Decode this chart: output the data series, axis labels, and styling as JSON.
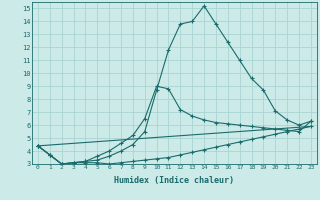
{
  "bg_color": "#cceae8",
  "grid_color": "#aad4d2",
  "line_color": "#1a6b6b",
  "xlabel": "Humidex (Indice chaleur)",
  "xlim": [
    -0.5,
    23.5
  ],
  "ylim": [
    3,
    15.5
  ],
  "yticks": [
    3,
    4,
    5,
    6,
    7,
    8,
    9,
    10,
    11,
    12,
    13,
    14,
    15
  ],
  "xticks": [
    0,
    1,
    2,
    3,
    4,
    5,
    6,
    7,
    8,
    9,
    10,
    11,
    12,
    13,
    14,
    15,
    16,
    17,
    18,
    19,
    20,
    21,
    22,
    23
  ],
  "line1_x": [
    0,
    1,
    2,
    3,
    4,
    5,
    6,
    7,
    8,
    9,
    10,
    11,
    12,
    13,
    14,
    15,
    16,
    17,
    18,
    19,
    20,
    21,
    22,
    23
  ],
  "line1_y": [
    4.4,
    3.7,
    3.0,
    3.1,
    3.1,
    3.1,
    3.0,
    3.1,
    3.2,
    3.3,
    3.4,
    3.5,
    3.7,
    3.9,
    4.1,
    4.3,
    4.5,
    4.7,
    4.9,
    5.1,
    5.3,
    5.5,
    5.7,
    5.9
  ],
  "line2_x": [
    0,
    1,
    2,
    3,
    4,
    5,
    6,
    7,
    8,
    9,
    10,
    11,
    12,
    13,
    14,
    15,
    16,
    17,
    18,
    19,
    20,
    21,
    22,
    23
  ],
  "line2_y": [
    4.4,
    3.7,
    3.0,
    3.1,
    3.2,
    3.3,
    3.6,
    4.0,
    4.5,
    5.5,
    8.7,
    11.8,
    13.8,
    14.0,
    15.2,
    13.8,
    12.4,
    11.0,
    9.6,
    8.7,
    7.1,
    6.4,
    6.0,
    6.3
  ],
  "line3_x": [
    0,
    1,
    2,
    3,
    4,
    5,
    6,
    7,
    8,
    9,
    10,
    11,
    12,
    13,
    14,
    15,
    16,
    17,
    18,
    19,
    20,
    21,
    22,
    23
  ],
  "line3_y": [
    4.4,
    3.7,
    3.0,
    3.1,
    3.2,
    3.6,
    4.0,
    4.6,
    5.2,
    6.5,
    9.0,
    8.8,
    7.2,
    6.7,
    6.4,
    6.2,
    6.1,
    6.0,
    5.9,
    5.8,
    5.7,
    5.6,
    5.5,
    6.3
  ],
  "line4_x": [
    0,
    23
  ],
  "line4_y": [
    4.4,
    5.9
  ]
}
